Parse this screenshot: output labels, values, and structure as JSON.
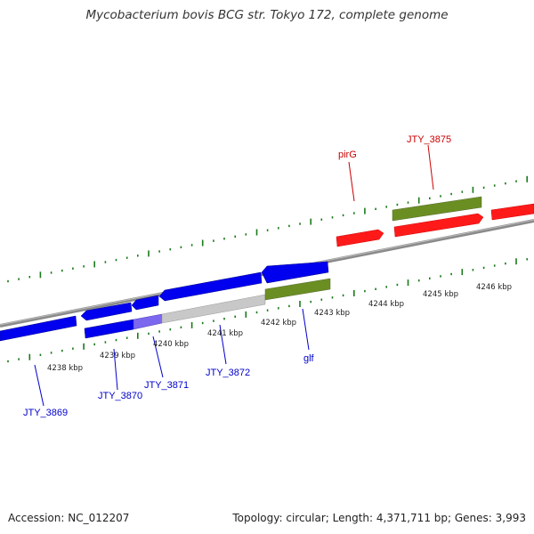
{
  "title": "Mycobacterium bovis BCG str. Tokyo 172, complete genome",
  "footer": {
    "accession": "Accession: NC_012207",
    "summary": "Topology: circular; Length: 4,371,711 bp; Genes: 3,993"
  },
  "colors": {
    "forward_gene": "#ff0000",
    "reverse_gene": "#0000ee",
    "cds_feature": "#6b8e23",
    "pseudo_feature": "#c8c8c8",
    "tick_marks": "#1a7a1a",
    "backbone": "#808080",
    "label_forward": "#cc0000",
    "label_reverse": "#0000cc"
  },
  "scale_labels": [
    "4238 kbp",
    "4239 kbp",
    "4240 kbp",
    "4241 kbp",
    "4242 kbp",
    "4243 kbp",
    "4244 kbp",
    "4245 kbp",
    "4246 kbp"
  ],
  "gene_labels": [
    {
      "name": "pirG",
      "strand": "forward"
    },
    {
      "name": "JTY_3875",
      "strand": "forward"
    },
    {
      "name": "JTY_3869",
      "strand": "reverse"
    },
    {
      "name": "JTY_3870",
      "strand": "reverse"
    },
    {
      "name": "JTY_3871",
      "strand": "reverse"
    },
    {
      "name": "JTY_3872",
      "strand": "reverse"
    },
    {
      "name": "glf",
      "strand": "reverse"
    }
  ]
}
